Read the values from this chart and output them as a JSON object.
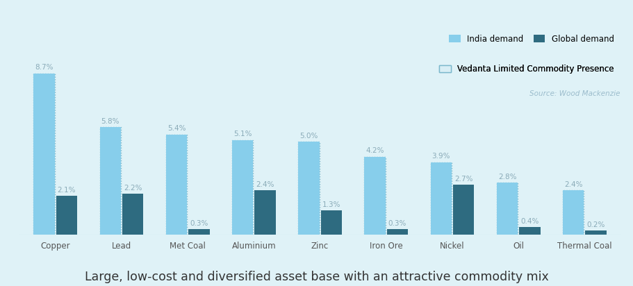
{
  "categories": [
    "Copper",
    "Lead",
    "Met Coal",
    "Aluminium",
    "Zinc",
    "Iron Ore",
    "Nickel",
    "Oil",
    "Thermal Coal"
  ],
  "india_demand": [
    8.7,
    5.8,
    5.4,
    5.1,
    5.0,
    4.2,
    3.9,
    2.8,
    2.4
  ],
  "global_demand": [
    2.1,
    2.2,
    0.3,
    2.4,
    1.3,
    0.3,
    2.7,
    0.4,
    0.2
  ],
  "india_color": "#87CEEB",
  "global_color": "#2E6B80",
  "vedanta_fill": "#D8EEF5",
  "vedanta_edge_color": "#7BB8CC",
  "background_color": "#DFF2F7",
  "bar_width": 0.32,
  "title": "Large, low-cost and diversified asset base with an attractive commodity mix",
  "title_fontsize": 12.5,
  "legend_india": "India demand",
  "legend_global": "Global demand",
  "legend_vedanta": "Vedanta Limited Commodity Presence",
  "source_text": "Source: Wood Mackenzie",
  "label_color": "#8AABB8",
  "xlabel_color": "#555555",
  "ylim": [
    0,
    10.8
  ]
}
